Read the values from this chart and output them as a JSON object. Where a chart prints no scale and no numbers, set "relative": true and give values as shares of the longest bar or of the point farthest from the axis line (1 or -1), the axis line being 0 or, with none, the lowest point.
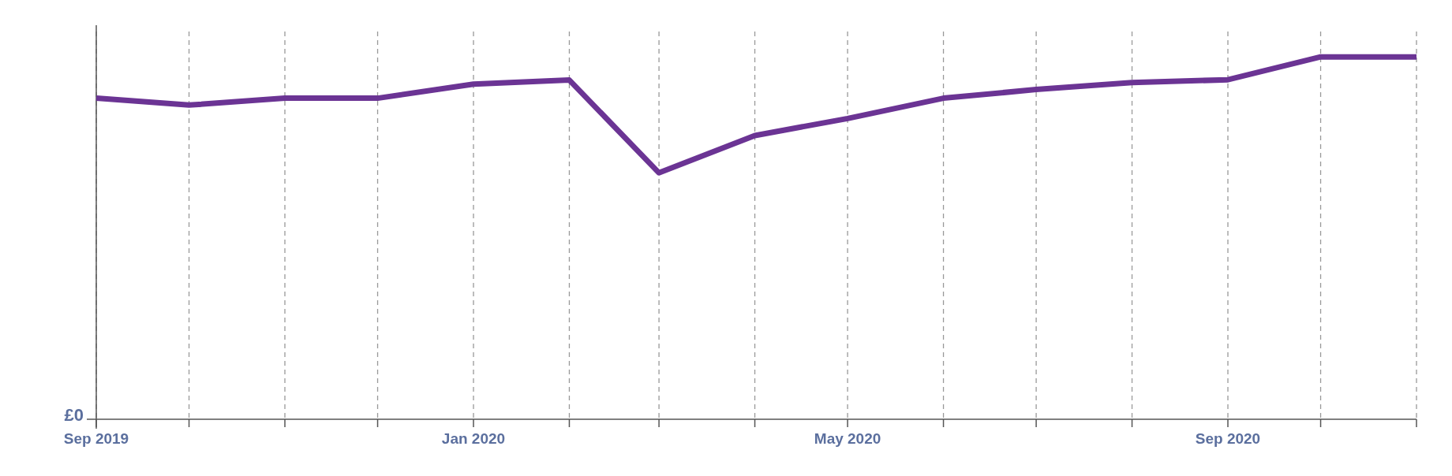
{
  "chart_data": {
    "type": "line",
    "relative": true,
    "x": [
      "2019-09",
      "2019-10",
      "2019-11",
      "2019-12",
      "2020-01",
      "2020-02",
      "2020-03",
      "2020-04",
      "2020-05",
      "2020-06",
      "2020-07",
      "2020-08",
      "2020-09",
      "2020-10",
      "2020-11"
    ],
    "xlim": [
      "2019-09",
      "2020-11"
    ],
    "xticks": [
      {
        "value": "2019-09",
        "label": "Sep 2019"
      },
      {
        "value": "2019-10",
        "label": null
      },
      {
        "value": "2019-11",
        "label": null
      },
      {
        "value": "2019-12",
        "label": null
      },
      {
        "value": "2020-01",
        "label": "Jan 2020"
      },
      {
        "value": "2020-02",
        "label": null
      },
      {
        "value": "2020-03",
        "label": null
      },
      {
        "value": "2020-04",
        "label": null
      },
      {
        "value": "2020-05",
        "label": "May 2020"
      },
      {
        "value": "2020-06",
        "label": null
      },
      {
        "value": "2020-07",
        "label": null
      },
      {
        "value": "2020-08",
        "label": null
      },
      {
        "value": "2020-09",
        "label": "Sep 2020"
      },
      {
        "value": "2020-10",
        "label": null
      },
      {
        "value": "2020-11",
        "label": null
      }
    ],
    "series": [
      {
        "color": "#6b3494",
        "values": [
          0.886,
          0.867,
          0.886,
          0.886,
          0.925,
          0.936,
          0.68,
          0.783,
          0.83,
          0.886,
          0.91,
          0.929,
          0.937,
          1,
          1
        ]
      }
    ],
    "annotations": [
      "£0"
    ],
    "grid": "x",
    "marker": "none",
    "line_style": "solid"
  }
}
